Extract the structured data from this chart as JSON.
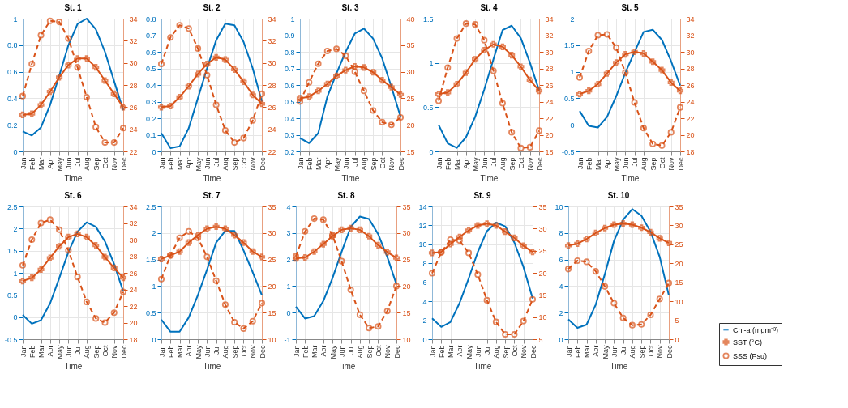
{
  "chart_data": [
    {
      "type": "line",
      "title": "St. 1",
      "xlabel": "Time",
      "categories": [
        "Jan",
        "Feb",
        "Mar",
        "Apr",
        "May",
        "Jun",
        "Jul",
        "Aug",
        "Sep",
        "Oct",
        "Nov",
        "Dec"
      ],
      "ylim": [
        0,
        1
      ],
      "yticks": [
        0,
        0.2,
        0.4,
        0.6,
        0.8,
        1
      ],
      "y2lim": [
        22,
        34
      ],
      "y2ticks": [
        22,
        24,
        26,
        28,
        30,
        32,
        34
      ],
      "grid": true,
      "series": [
        {
          "color": "#0072bd",
          "axis": "y",
          "marker": "none",
          "line_style": "solid",
          "values": [
            0.15,
            0.12,
            0.18,
            0.35,
            0.57,
            0.8,
            0.96,
            1.0,
            0.92,
            0.75,
            0.53,
            0.31
          ]
        },
        {
          "color": "#d95319",
          "axis": "y2",
          "marker": "cross",
          "line_style": "solid",
          "values": [
            25.3,
            25.4,
            26.2,
            27.4,
            28.7,
            29.8,
            30.4,
            30.4,
            29.6,
            28.4,
            27.2,
            26.0
          ]
        },
        {
          "color": "#d95319",
          "axis": "y2",
          "marker": "circle",
          "line_style": "dashed",
          "values": [
            27.0,
            29.9,
            32.5,
            33.8,
            33.7,
            32.2,
            29.6,
            26.9,
            24.2,
            22.8,
            22.8,
            24.1
          ]
        }
      ]
    },
    {
      "type": "line",
      "title": "St. 2",
      "xlabel": "Time",
      "categories": [
        "Jan",
        "Feb",
        "Mar",
        "Apr",
        "May",
        "Jun",
        "Jul",
        "Aug",
        "Sep",
        "Oct",
        "Nov",
        "Dec"
      ],
      "ylim": [
        0,
        0.8
      ],
      "yticks": [
        0,
        0.1,
        0.2,
        0.3,
        0.4,
        0.5,
        0.6,
        0.7,
        0.8
      ],
      "y2lim": [
        22,
        34
      ],
      "y2ticks": [
        22,
        24,
        26,
        28,
        30,
        32,
        34
      ],
      "grid": true,
      "series": [
        {
          "color": "#0072bd",
          "axis": "y",
          "marker": "none",
          "line_style": "solid",
          "values": [
            0.11,
            0.02,
            0.03,
            0.14,
            0.32,
            0.5,
            0.67,
            0.77,
            0.76,
            0.66,
            0.5,
            0.3
          ]
        },
        {
          "color": "#d95319",
          "axis": "y2",
          "marker": "cross",
          "line_style": "solid",
          "values": [
            26.0,
            26.1,
            26.9,
            27.9,
            29.0,
            29.9,
            30.5,
            30.3,
            29.4,
            28.3,
            27.1,
            26.3
          ]
        },
        {
          "color": "#d95319",
          "axis": "y2",
          "marker": "circle",
          "line_style": "dashed",
          "values": [
            29.9,
            32.3,
            33.4,
            33.1,
            31.3,
            28.9,
            26.2,
            23.9,
            22.8,
            23.2,
            24.8,
            27.2
          ]
        }
      ]
    },
    {
      "type": "line",
      "title": "St. 3",
      "xlabel": "Time",
      "categories": [
        "Jan",
        "Feb",
        "Mar",
        "Apr",
        "May",
        "Jun",
        "Jul",
        "Aug",
        "Sep",
        "Oct",
        "Nov",
        "Dec"
      ],
      "ylim": [
        0.2,
        1
      ],
      "yticks": [
        0.2,
        0.3,
        0.4,
        0.5,
        0.6,
        0.7,
        0.8,
        0.9,
        1
      ],
      "y2lim": [
        15,
        40
      ],
      "y2ticks": [
        15,
        20,
        25,
        30,
        35,
        40
      ],
      "grid": true,
      "series": [
        {
          "color": "#0072bd",
          "axis": "y",
          "marker": "none",
          "line_style": "solid",
          "values": [
            0.28,
            0.25,
            0.31,
            0.53,
            0.67,
            0.8,
            0.91,
            0.94,
            0.88,
            0.76,
            0.59,
            0.41
          ]
        },
        {
          "color": "#d95319",
          "axis": "y2",
          "marker": "cross",
          "line_style": "solid",
          "values": [
            25.0,
            25.3,
            26.4,
            27.7,
            29.2,
            30.3,
            31.0,
            30.8,
            29.9,
            28.4,
            27.1,
            25.7
          ]
        },
        {
          "color": "#d95319",
          "axis": "y2",
          "marker": "circle",
          "line_style": "dashed",
          "values": [
            24.4,
            28.0,
            31.5,
            33.9,
            34.3,
            33.0,
            30.0,
            26.4,
            22.7,
            20.5,
            20.0,
            21.4
          ]
        }
      ]
    },
    {
      "type": "line",
      "title": "St. 4",
      "xlabel": "Time",
      "categories": [
        "Jan",
        "Feb",
        "Mar",
        "Apr",
        "May",
        "Jun",
        "Jul",
        "Aug",
        "Sep",
        "Oct",
        "Nov",
        "Dec"
      ],
      "ylim": [
        0,
        1.5
      ],
      "yticks": [
        0,
        0.5,
        1,
        1.5
      ],
      "y2lim": [
        18,
        34
      ],
      "y2ticks": [
        18,
        20,
        22,
        24,
        26,
        28,
        30,
        32,
        34
      ],
      "grid": true,
      "series": [
        {
          "color": "#0072bd",
          "axis": "y",
          "marker": "none",
          "line_style": "solid",
          "values": [
            0.3,
            0.09,
            0.04,
            0.16,
            0.39,
            0.7,
            1.04,
            1.37,
            1.42,
            1.28,
            1.0,
            0.69
          ]
        },
        {
          "color": "#d95319",
          "axis": "y2",
          "marker": "cross",
          "line_style": "solid",
          "values": [
            24.9,
            25.1,
            26.1,
            27.5,
            29.1,
            30.2,
            30.9,
            30.6,
            29.6,
            28.2,
            26.6,
            25.3
          ]
        },
        {
          "color": "#d95319",
          "axis": "y2",
          "marker": "circle",
          "line_style": "dashed",
          "values": [
            24.1,
            28.1,
            31.6,
            33.4,
            33.3,
            31.4,
            27.7,
            23.8,
            20.3,
            18.4,
            18.5,
            20.5
          ]
        }
      ]
    },
    {
      "type": "line",
      "title": "St. 5",
      "xlabel": "Time",
      "categories": [
        "Jan",
        "Feb",
        "Mar",
        "Apr",
        "May",
        "Jun",
        "Jul",
        "Aug",
        "Sep",
        "Oct",
        "Nov",
        "Dec"
      ],
      "ylim": [
        -0.5,
        2
      ],
      "yticks": [
        -0.5,
        0,
        0.5,
        1,
        1.5,
        2
      ],
      "y2lim": [
        18,
        34
      ],
      "y2ticks": [
        18,
        20,
        22,
        24,
        26,
        28,
        30,
        32,
        34
      ],
      "grid": true,
      "series": [
        {
          "color": "#0072bd",
          "axis": "y",
          "marker": "none",
          "line_style": "solid",
          "values": [
            0.26,
            -0.02,
            -0.05,
            0.15,
            0.54,
            0.98,
            1.37,
            1.75,
            1.79,
            1.6,
            1.2,
            0.74
          ]
        },
        {
          "color": "#d95319",
          "axis": "y2",
          "marker": "cross",
          "line_style": "solid",
          "values": [
            24.9,
            25.3,
            26.1,
            27.4,
            28.7,
            29.7,
            30.0,
            29.8,
            28.8,
            27.8,
            26.3,
            25.3
          ]
        },
        {
          "color": "#d95319",
          "axis": "y2",
          "marker": "circle",
          "line_style": "dashed",
          "values": [
            26.9,
            30.1,
            32.0,
            32.1,
            30.5,
            27.5,
            23.9,
            20.8,
            18.9,
            18.7,
            20.3,
            23.3
          ]
        }
      ]
    },
    {
      "type": "line",
      "title": "St. 6",
      "xlabel": "Time",
      "categories": [
        "Jan",
        "Feb",
        "Mar",
        "Apr",
        "May",
        "Jun",
        "Jul",
        "Aug",
        "Sep",
        "Oct",
        "Nov",
        "Dec"
      ],
      "ylim": [
        -0.5,
        2.5
      ],
      "yticks": [
        -0.5,
        0,
        0.5,
        1,
        1.5,
        2,
        2.5
      ],
      "y2lim": [
        18,
        34
      ],
      "y2ticks": [
        18,
        20,
        22,
        24,
        26,
        28,
        30,
        32,
        34
      ],
      "grid": true,
      "series": [
        {
          "color": "#0072bd",
          "axis": "y",
          "marker": "none",
          "line_style": "solid",
          "values": [
            0.05,
            -0.15,
            -0.07,
            0.31,
            0.88,
            1.47,
            1.93,
            2.14,
            2.04,
            1.71,
            1.2,
            0.58
          ]
        },
        {
          "color": "#d95319",
          "axis": "y2",
          "marker": "cross",
          "line_style": "solid",
          "values": [
            25.0,
            25.4,
            26.4,
            27.8,
            29.2,
            30.3,
            30.7,
            30.3,
            29.3,
            27.9,
            26.6,
            25.4
          ]
        },
        {
          "color": "#d95319",
          "axis": "y2",
          "marker": "circle",
          "line_style": "dashed",
          "values": [
            26.9,
            30.0,
            32.0,
            32.4,
            31.2,
            28.7,
            25.5,
            22.5,
            20.5,
            20.0,
            21.2,
            23.7
          ]
        }
      ]
    },
    {
      "type": "line",
      "title": "St. 7",
      "xlabel": "Time",
      "categories": [
        "Jan",
        "Feb",
        "Mar",
        "Apr",
        "May",
        "Jun",
        "Jul",
        "Aug",
        "Sep",
        "Oct",
        "Nov",
        "Dec"
      ],
      "ylim": [
        0,
        2.5
      ],
      "yticks": [
        0,
        0.5,
        1,
        1.5,
        2,
        2.5
      ],
      "y2lim": [
        10,
        35
      ],
      "y2ticks": [
        10,
        15,
        20,
        25,
        30,
        35
      ],
      "grid": true,
      "series": [
        {
          "color": "#0072bd",
          "axis": "y",
          "marker": "none",
          "line_style": "solid",
          "values": [
            0.37,
            0.14,
            0.14,
            0.41,
            0.83,
            1.31,
            1.82,
            2.04,
            2.04,
            1.67,
            1.26,
            0.83
          ]
        },
        {
          "color": "#d95319",
          "axis": "y2",
          "marker": "cross",
          "line_style": "solid",
          "values": [
            25.1,
            25.8,
            26.5,
            28.2,
            29.6,
            30.8,
            31.2,
            30.8,
            29.6,
            28.2,
            26.5,
            25.5
          ]
        },
        {
          "color": "#d95319",
          "axis": "y2",
          "marker": "circle",
          "line_style": "dashed",
          "values": [
            21.3,
            25.8,
            29.1,
            30.3,
            29.1,
            25.5,
            21.0,
            16.5,
            13.2,
            12.0,
            13.4,
            16.8
          ]
        }
      ]
    },
    {
      "type": "line",
      "title": "St. 8",
      "xlabel": "Time",
      "categories": [
        "Jan",
        "Feb",
        "Mar",
        "Apr",
        "May",
        "Jun",
        "Jul",
        "Aug",
        "Sep",
        "Oct",
        "Nov",
        "Dec"
      ],
      "ylim": [
        -1,
        4
      ],
      "yticks": [
        -1,
        0,
        1,
        2,
        3,
        4
      ],
      "y2lim": [
        10,
        35
      ],
      "y2ticks": [
        10,
        15,
        20,
        25,
        30,
        35
      ],
      "grid": true,
      "series": [
        {
          "color": "#0072bd",
          "axis": "y",
          "marker": "none",
          "line_style": "solid",
          "values": [
            0.22,
            -0.22,
            -0.13,
            0.44,
            1.3,
            2.29,
            3.23,
            3.62,
            3.53,
            2.96,
            2.1,
            1.07
          ]
        },
        {
          "color": "#d95319",
          "axis": "y2",
          "marker": "cross",
          "line_style": "solid",
          "values": [
            25.2,
            25.4,
            26.5,
            27.9,
            29.4,
            30.6,
            30.9,
            30.6,
            29.4,
            27.7,
            26.4,
            25.3
          ]
        },
        {
          "color": "#d95319",
          "axis": "y2",
          "marker": "circle",
          "line_style": "dashed",
          "values": [
            25.6,
            30.3,
            32.7,
            32.5,
            29.6,
            24.7,
            19.3,
            14.6,
            12.1,
            12.4,
            15.3,
            20.0
          ]
        }
      ]
    },
    {
      "type": "line",
      "title": "St. 9",
      "xlabel": "Time",
      "categories": [
        "Jan",
        "Feb",
        "Mar",
        "Apr",
        "May",
        "Jun",
        "Jul",
        "Aug",
        "Sep",
        "Oct",
        "Nov",
        "Dec"
      ],
      "ylim": [
        0,
        14
      ],
      "yticks": [
        0,
        2,
        4,
        6,
        8,
        10,
        12,
        14
      ],
      "y2lim": [
        5,
        35
      ],
      "y2ticks": [
        5,
        10,
        15,
        20,
        25,
        30,
        35
      ],
      "grid": true,
      "series": [
        {
          "color": "#0072bd",
          "axis": "y",
          "marker": "none",
          "line_style": "solid",
          "values": [
            2.2,
            1.3,
            1.8,
            3.8,
            6.4,
            9.2,
            11.4,
            12.3,
            11.9,
            10.2,
            7.6,
            4.3
          ]
        },
        {
          "color": "#d95319",
          "axis": "y2",
          "marker": "cross",
          "line_style": "solid",
          "values": [
            24.5,
            24.7,
            26.5,
            28.1,
            29.6,
            30.7,
            31.1,
            30.7,
            29.3,
            27.9,
            26.1,
            24.7
          ]
        },
        {
          "color": "#d95319",
          "axis": "y2",
          "marker": "circle",
          "line_style": "dashed",
          "values": [
            19.9,
            24.6,
            27.5,
            27.3,
            24.5,
            19.6,
            13.8,
            8.9,
            6.1,
            6.1,
            9.1,
            14.0
          ]
        }
      ]
    },
    {
      "type": "line",
      "title": "St. 10",
      "xlabel": "Time",
      "categories": [
        "Jan",
        "Feb",
        "Mar",
        "Apr",
        "May",
        "Jun",
        "Jul",
        "Aug",
        "Sep",
        "Oct",
        "Nov",
        "Dec"
      ],
      "ylim": [
        0,
        10
      ],
      "yticks": [
        0,
        2,
        4,
        6,
        8,
        10
      ],
      "y2lim": [
        0,
        35
      ],
      "y2ticks": [
        0,
        5,
        10,
        15,
        20,
        25,
        30,
        35
      ],
      "grid": true,
      "legend": "bottom right",
      "series": [
        {
          "name": "Chl-a (mgm⁻³)",
          "color": "#0072bd",
          "axis": "y",
          "marker": "none",
          "line_style": "solid",
          "values": [
            1.5,
            0.85,
            1.1,
            2.6,
            4.9,
            7.4,
            9.0,
            9.8,
            9.3,
            8.1,
            6.2,
            3.3
          ]
        },
        {
          "name": "SST (°C)",
          "color": "#d95319",
          "axis": "y2",
          "marker": "cross",
          "line_style": "solid",
          "values": [
            24.7,
            25.2,
            26.4,
            28.0,
            29.3,
            30.2,
            30.5,
            30.2,
            29.4,
            28.2,
            26.6,
            25.4
          ]
        },
        {
          "name": "SSS (Psu)",
          "color": "#d95319",
          "axis": "y2",
          "marker": "circle",
          "line_style": "dashed",
          "values": [
            18.5,
            20.7,
            20.4,
            17.9,
            13.9,
            9.5,
            5.6,
            3.7,
            3.9,
            6.4,
            10.6,
            14.8
          ]
        }
      ]
    }
  ]
}
